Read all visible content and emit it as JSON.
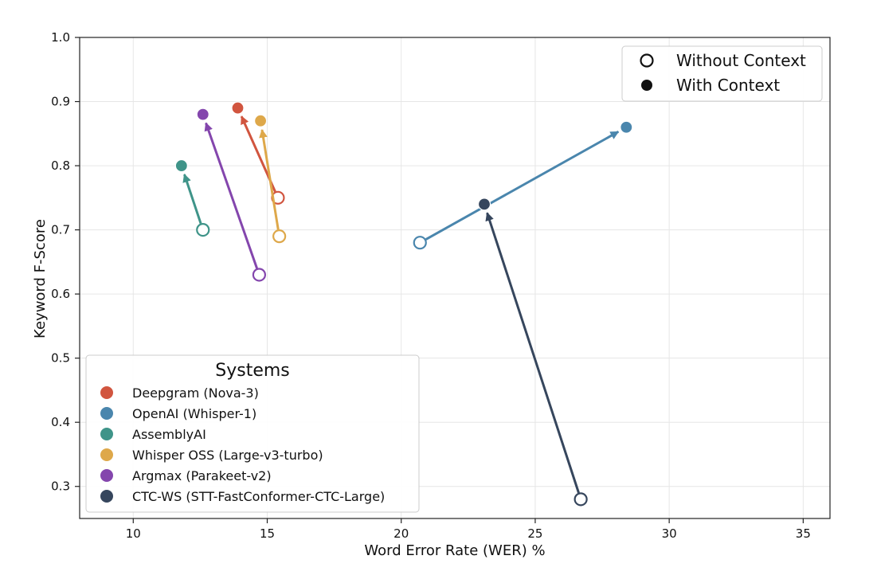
{
  "chart_data": {
    "type": "scatter",
    "xlabel": "Word Error Rate (WER) %",
    "ylabel": "Keyword F-Score",
    "xlim": [
      8,
      36
    ],
    "ylim": [
      0.25,
      1.0
    ],
    "xticks": [
      "10",
      "15",
      "20",
      "25",
      "30",
      "35"
    ],
    "yticks": [
      "0.3",
      "0.4",
      "0.5",
      "0.6",
      "0.7",
      "0.8",
      "0.9",
      "1.0"
    ],
    "grid": true,
    "legend_title": "Systems",
    "legend_position": "lower-left",
    "context_legend": {
      "position": "upper-right",
      "without_label": "Without Context",
      "with_label": "With Context"
    },
    "series": [
      {
        "name": "Deepgram (Nova-3)",
        "color": "#d1553f",
        "without": {
          "x": 15.4,
          "y": 0.75
        },
        "with": {
          "x": 13.9,
          "y": 0.89
        }
      },
      {
        "name": "OpenAI (Whisper-1)",
        "color": "#4a86ad",
        "without": {
          "x": 20.7,
          "y": 0.68
        },
        "with": {
          "x": 28.4,
          "y": 0.86
        }
      },
      {
        "name": "AssemblyAI",
        "color": "#3f9489",
        "without": {
          "x": 12.6,
          "y": 0.7
        },
        "with": {
          "x": 11.8,
          "y": 0.8
        }
      },
      {
        "name": "Whisper OSS (Large-v3-turbo)",
        "color": "#dea84a",
        "without": {
          "x": 15.45,
          "y": 0.69
        },
        "with": {
          "x": 14.75,
          "y": 0.87
        }
      },
      {
        "name": "Argmax (Parakeet-v2)",
        "color": "#8446ad",
        "without": {
          "x": 14.7,
          "y": 0.63
        },
        "with": {
          "x": 12.6,
          "y": 0.88
        }
      },
      {
        "name": "CTC-WS (STT-FastConformer-CTC-Large)",
        "color": "#36465d",
        "without": {
          "x": 26.7,
          "y": 0.28
        },
        "with": {
          "x": 23.1,
          "y": 0.74
        }
      }
    ]
  }
}
